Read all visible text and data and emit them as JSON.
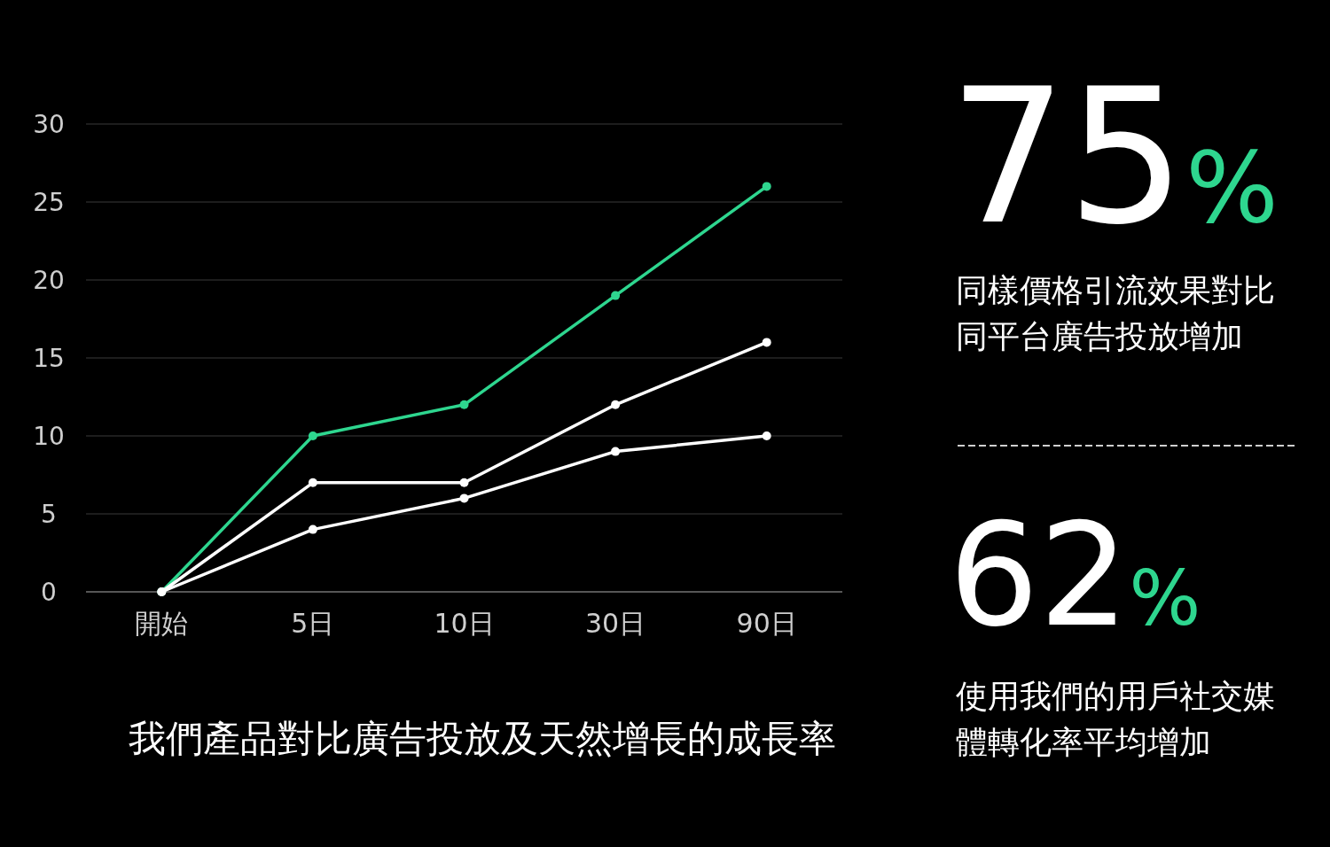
{
  "chart_data": [
    {
      "type": "line",
      "title": "我們產品對比廣告投放及天然增長的成長率",
      "categories": [
        "開始",
        "5日",
        "10日",
        "30日",
        "90日"
      ],
      "series": [
        {
          "color": "#2ed68f",
          "values": [
            0,
            10,
            12,
            19,
            26
          ]
        },
        {
          "color": "#ffffff",
          "values": [
            0,
            7,
            7,
            12,
            16
          ]
        },
        {
          "color": "#ffffff",
          "values": [
            0,
            4,
            6,
            9,
            10
          ]
        }
      ],
      "ylim": [
        0,
        30
      ],
      "yticks": [
        0,
        5,
        10,
        15,
        20,
        25,
        30
      ],
      "grid": "y",
      "marker": "circle"
    },
    {
      "type": "other",
      "annotations": [
        "75%",
        "同樣價格引流效果對比同平台廣告投放增加",
        "62%",
        "使用我們的用戶社交媒體轉化率平均增加"
      ]
    }
  ]
}
